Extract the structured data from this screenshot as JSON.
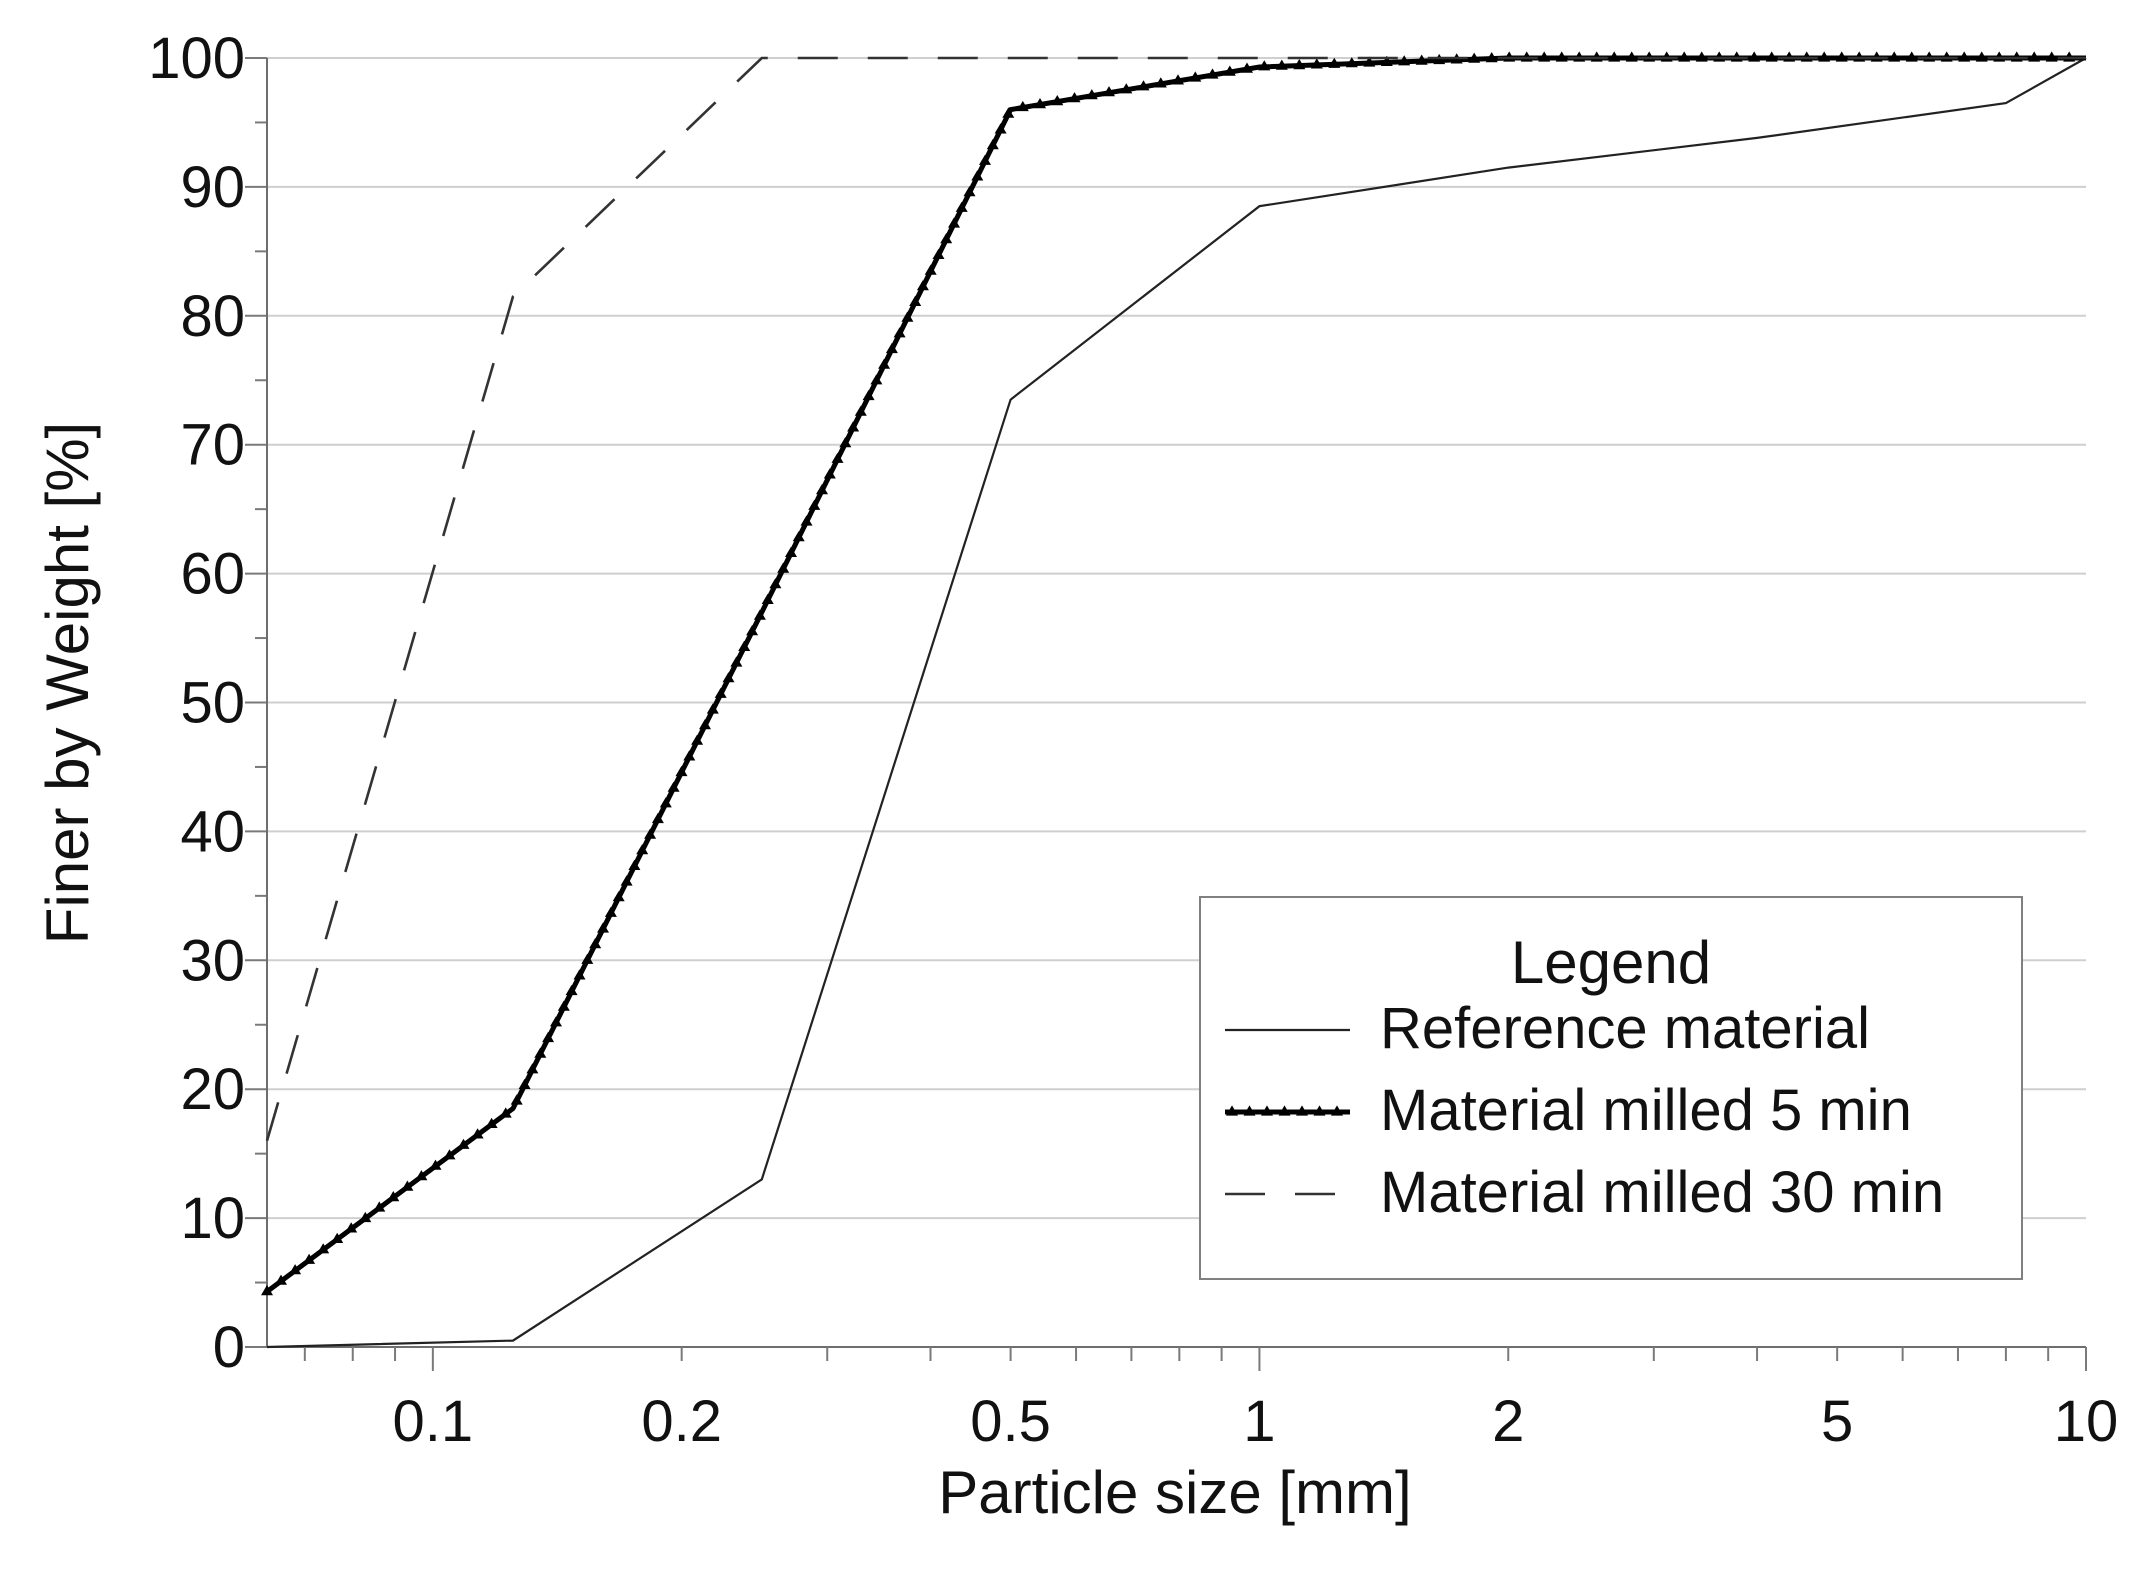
{
  "chart_data": {
    "type": "line",
    "title": "",
    "xlabel": "Particle size [mm]",
    "ylabel": "Finer by Weight [%]",
    "xscale": "log",
    "xlim": [
      0.063,
      10
    ],
    "ylim": [
      0,
      100
    ],
    "xticks": [
      {
        "value": 0.1,
        "label": "0.1"
      },
      {
        "value": 0.2,
        "label": "0.2"
      },
      {
        "value": 0.5,
        "label": "0.5"
      },
      {
        "value": 1,
        "label": "1"
      },
      {
        "value": 2,
        "label": "2"
      },
      {
        "value": 5,
        "label": "5"
      },
      {
        "value": 10,
        "label": "10"
      }
    ],
    "yticks": [
      {
        "value": 0,
        "label": "0"
      },
      {
        "value": 10,
        "label": "10"
      },
      {
        "value": 20,
        "label": "20"
      },
      {
        "value": 30,
        "label": "30"
      },
      {
        "value": 40,
        "label": "40"
      },
      {
        "value": 50,
        "label": "50"
      },
      {
        "value": 60,
        "label": "60"
      },
      {
        "value": 70,
        "label": "70"
      },
      {
        "value": 80,
        "label": "80"
      },
      {
        "value": 90,
        "label": "90"
      },
      {
        "value": 100,
        "label": "100"
      }
    ],
    "grid": "horizontal",
    "legend": {
      "title": "Legend",
      "position": "bottom-right"
    },
    "series": [
      {
        "name": "Reference material",
        "style": "solid-thin",
        "color": "#222222",
        "points": [
          [
            0.063,
            0
          ],
          [
            0.125,
            0.5
          ],
          [
            0.25,
            13
          ],
          [
            0.5,
            73.5
          ],
          [
            1,
            88.5
          ],
          [
            2,
            91.5
          ],
          [
            4,
            93.8
          ],
          [
            8,
            96.5
          ],
          [
            10,
            100
          ]
        ]
      },
      {
        "name": "Material milled 5 min",
        "style": "solid-triangles",
        "color": "#000000",
        "points": [
          [
            0.063,
            4.3
          ],
          [
            0.125,
            18.5
          ],
          [
            0.25,
            57
          ],
          [
            0.5,
            96
          ],
          [
            1,
            99.3
          ],
          [
            2,
            100
          ],
          [
            10,
            100
          ]
        ]
      },
      {
        "name": "Material milled 30 min",
        "style": "dashed",
        "color": "#333333",
        "points": [
          [
            0.063,
            16
          ],
          [
            0.125,
            81.5
          ],
          [
            0.25,
            100
          ],
          [
            10,
            100
          ]
        ]
      }
    ]
  }
}
